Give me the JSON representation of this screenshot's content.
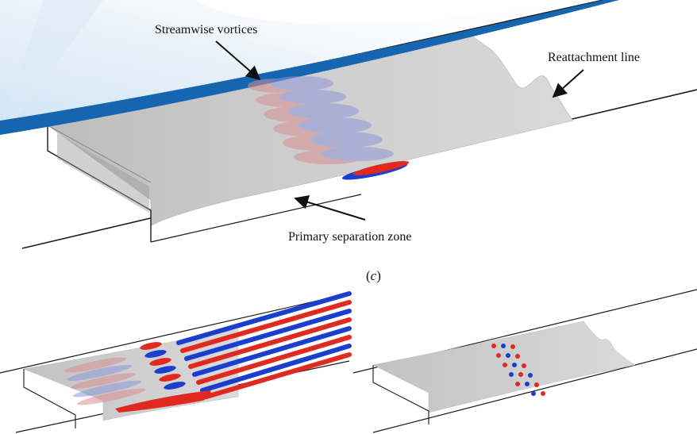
{
  "annotations": {
    "streamwise_vortices": "Streamwise vortices",
    "reattachment_line": "Reattachment line",
    "primary_separation_zone": "Primary separation zone"
  },
  "panel_label": {
    "open": "(",
    "letter": "c",
    "close": ")"
  },
  "colors": {
    "shock_blue": "#1565b0",
    "shock_fade": "#cfe3f3",
    "separation_gray": "#cacaca",
    "vortex_red": "#e0291f",
    "vortex_blue": "#1a3fd0",
    "vortex_red_faint": "#d59a9c",
    "vortex_blue_faint": "#9ea6db",
    "line": "#1a1a1a"
  }
}
